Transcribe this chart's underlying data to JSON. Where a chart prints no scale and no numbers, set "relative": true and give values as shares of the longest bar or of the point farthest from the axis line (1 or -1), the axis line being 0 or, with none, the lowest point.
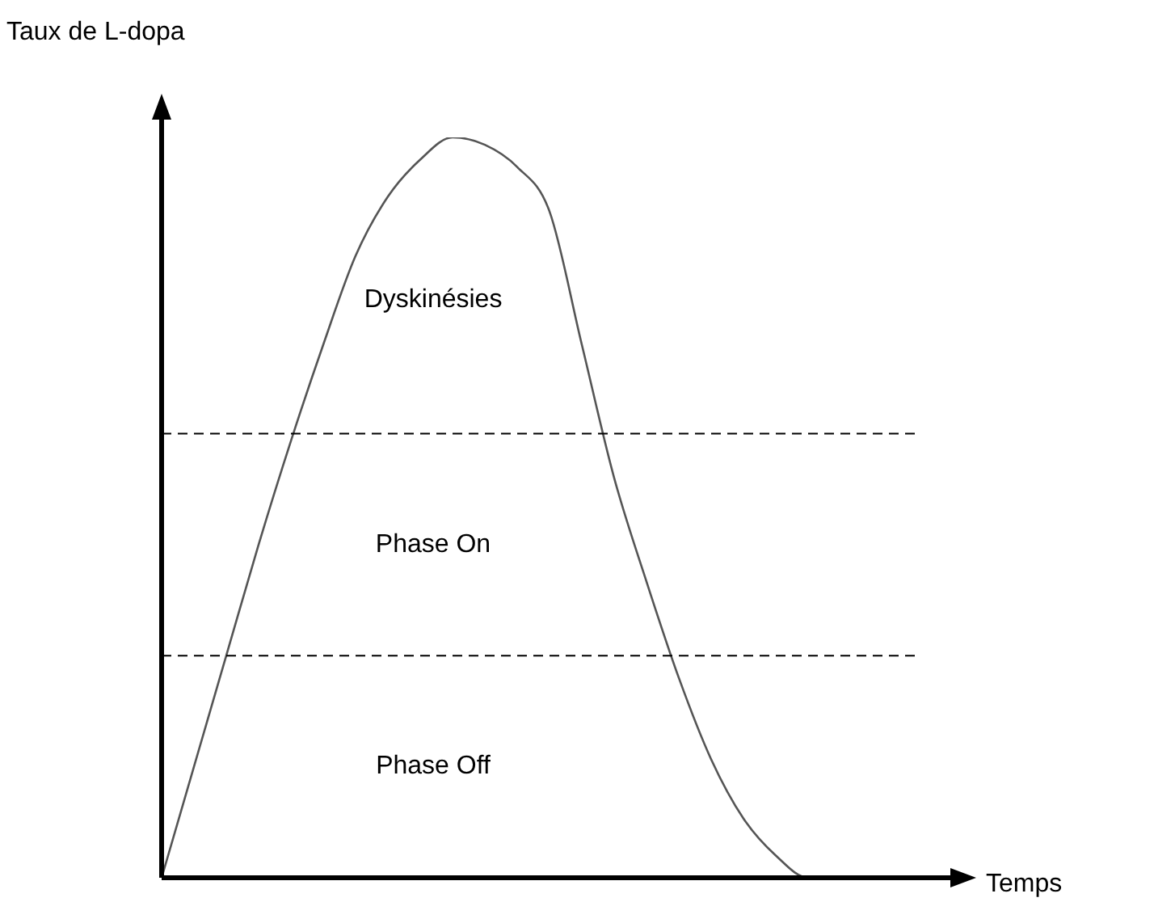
{
  "chart_data": {
    "type": "line",
    "relative": true,
    "xlabel": "Temps",
    "ylabel": "Taux de L-dopa",
    "categories": [
      null,
      null,
      null,
      null,
      null,
      null,
      null,
      null,
      null,
      null,
      null,
      null,
      null,
      null,
      null,
      null,
      null,
      null,
      null,
      null,
      null,
      null,
      null,
      null,
      null
    ],
    "series": [
      {
        "color": "#555555",
        "values": [
          0,
          0.15,
          0.3,
          0.45,
          0.59,
          0.72,
          0.84,
          0.92,
          0.97,
          1,
          0.99,
          0.96,
          0.9,
          0.72,
          0.54,
          0.4,
          0.27,
          0.16,
          0.08,
          0.03,
          0,
          0,
          0,
          0,
          0
        ]
      }
    ],
    "ref_lines": [
      {
        "axis": "y",
        "value": 0.6,
        "line_style": "dashed",
        "color": "#000000"
      },
      {
        "axis": "y",
        "value": 0.3,
        "line_style": "dashed",
        "color": "#000000"
      }
    ],
    "annotations": [
      "Dyskinésies",
      "Phase On",
      "Phase Off"
    ],
    "legend": false,
    "marker": "none",
    "line_style": "solid"
  }
}
